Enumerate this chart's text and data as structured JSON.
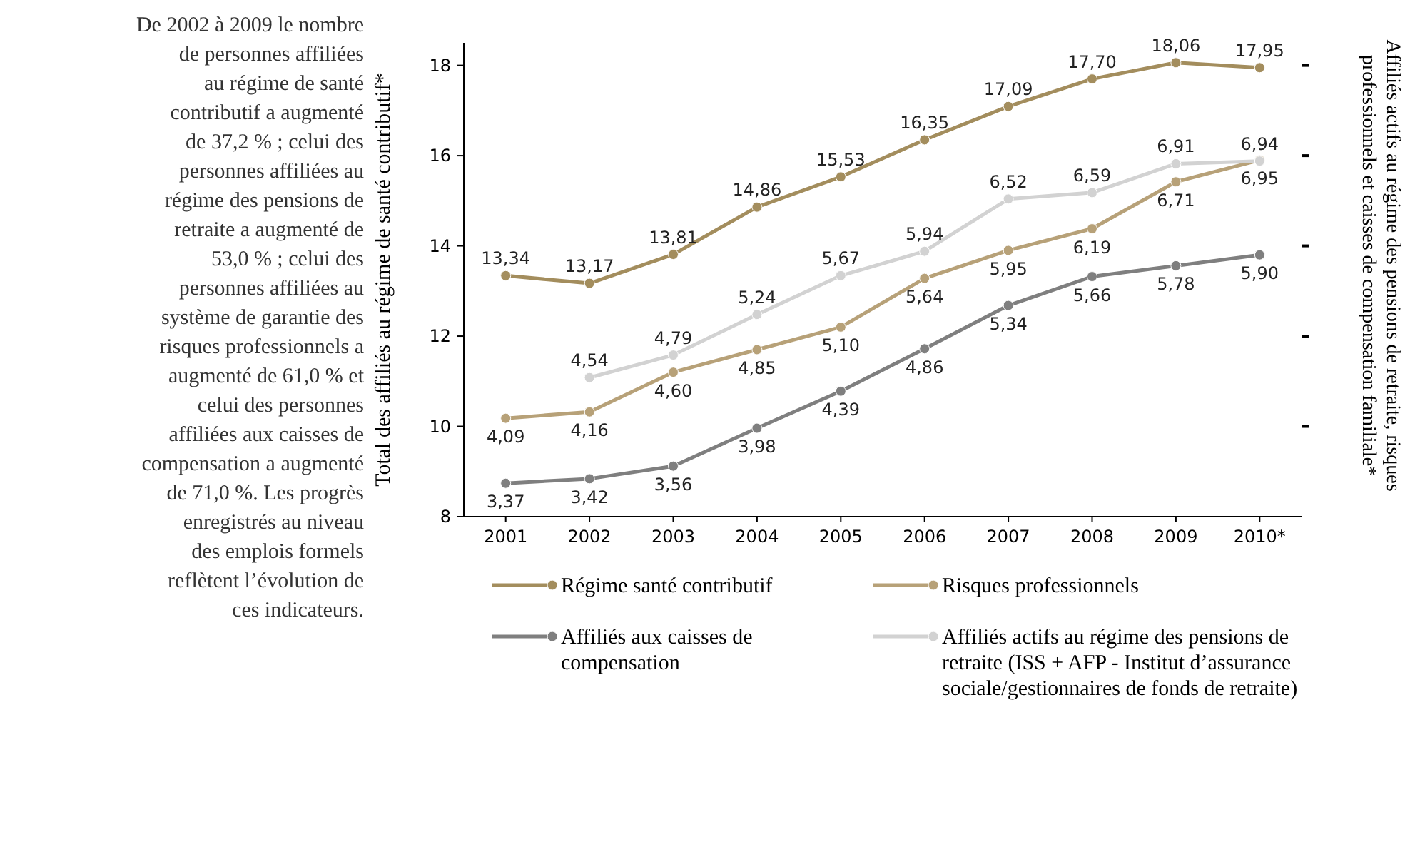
{
  "chart_data": {
    "type": "line",
    "ylabel": "Total des affiliés au régime de santé contributif*",
    "y2label": "Affiliés actifs au régime des pensions de retraite, risques professionnels et caisses de compensation familiale*",
    "categories": [
      "2001",
      "2002",
      "2003",
      "2004",
      "2005",
      "2006",
      "2007",
      "2008",
      "2009",
      "2010*"
    ],
    "ylim": [
      8,
      18.5
    ],
    "yticks": [
      8,
      10,
      12,
      14,
      16,
      18
    ],
    "y2lim": [
      3,
      8.25
    ],
    "y2ticks": [
      {
        "value": 4,
        "label": null
      },
      {
        "value": 5,
        "label": null
      },
      {
        "value": 6,
        "label": null
      },
      {
        "value": 7,
        "label": null
      },
      {
        "value": 8,
        "label": null
      }
    ],
    "series": [
      {
        "name": "Régime santé contributif",
        "color": "#a38d5d",
        "values": [
          13.34,
          13.17,
          13.81,
          14.86,
          15.53,
          16.35,
          17.09,
          17.7,
          18.06,
          17.95
        ],
        "value_labels": [
          "13,34",
          "13,17",
          "13,81",
          "14,86",
          "15,53",
          "16,35",
          "17,09",
          "17,70",
          "18,06",
          "17,95"
        ]
      },
      {
        "name": "Risques professionnels",
        "color": "#b7a178",
        "axis": "y2",
        "values": [
          4.09,
          4.16,
          4.6,
          4.85,
          5.1,
          5.64,
          5.95,
          6.19,
          6.71,
          6.95
        ],
        "value_labels": [
          "4,09",
          "4,16",
          "4,60",
          "4,85",
          "5,10",
          "5,64",
          "5,95",
          "6,19",
          "6,71",
          "6,95"
        ]
      },
      {
        "name": "Affiliés aux caisses de compensation",
        "color": "#7f7f7f",
        "axis": "y2",
        "values": [
          3.37,
          3.42,
          3.56,
          3.98,
          4.39,
          4.86,
          5.34,
          5.66,
          5.78,
          5.9
        ],
        "value_labels": [
          "3,37",
          "3,42",
          "3,56",
          "3,98",
          "4,39",
          "4,86",
          "5,34",
          "5,66",
          "5,78",
          "5,90"
        ]
      },
      {
        "name": "Affiliés actifs au régime des pensions de retraite (ISS + AFP - Institut d’assurance sociale/gestionnaires de fonds de retraite)",
        "color": "#d2d2d2",
        "axis": "y2",
        "values": [
          null,
          4.54,
          4.79,
          5.24,
          5.67,
          5.94,
          6.52,
          6.59,
          6.91,
          6.94
        ],
        "value_labels": [
          null,
          "4,54",
          "4,79",
          "5,24",
          "5,67",
          "5,94",
          "6,52",
          "6,59",
          "6,91",
          "6,94"
        ]
      }
    ],
    "marker": "circle",
    "line_style": "solid",
    "legend": "bottom",
    "grid": false,
    "annotations": [
      "De 2002 à 2009 le nombre de personnes affiliées au régime de santé contributif a augmenté de 37,2 % ; celui des personnes affiliées au régime des pensions de retraite a augmenté de 53,0 % ; celui des personnes affiliées au système de garantie des risques professionnels a augmenté de 61,0 % et celui des personnes affiliées aux caisses de compensation a augmenté de 71,0 %. Les progrès enregistrés au niveau des emplois formels reflètent l’évolution de ces indicateurs."
    ]
  }
}
